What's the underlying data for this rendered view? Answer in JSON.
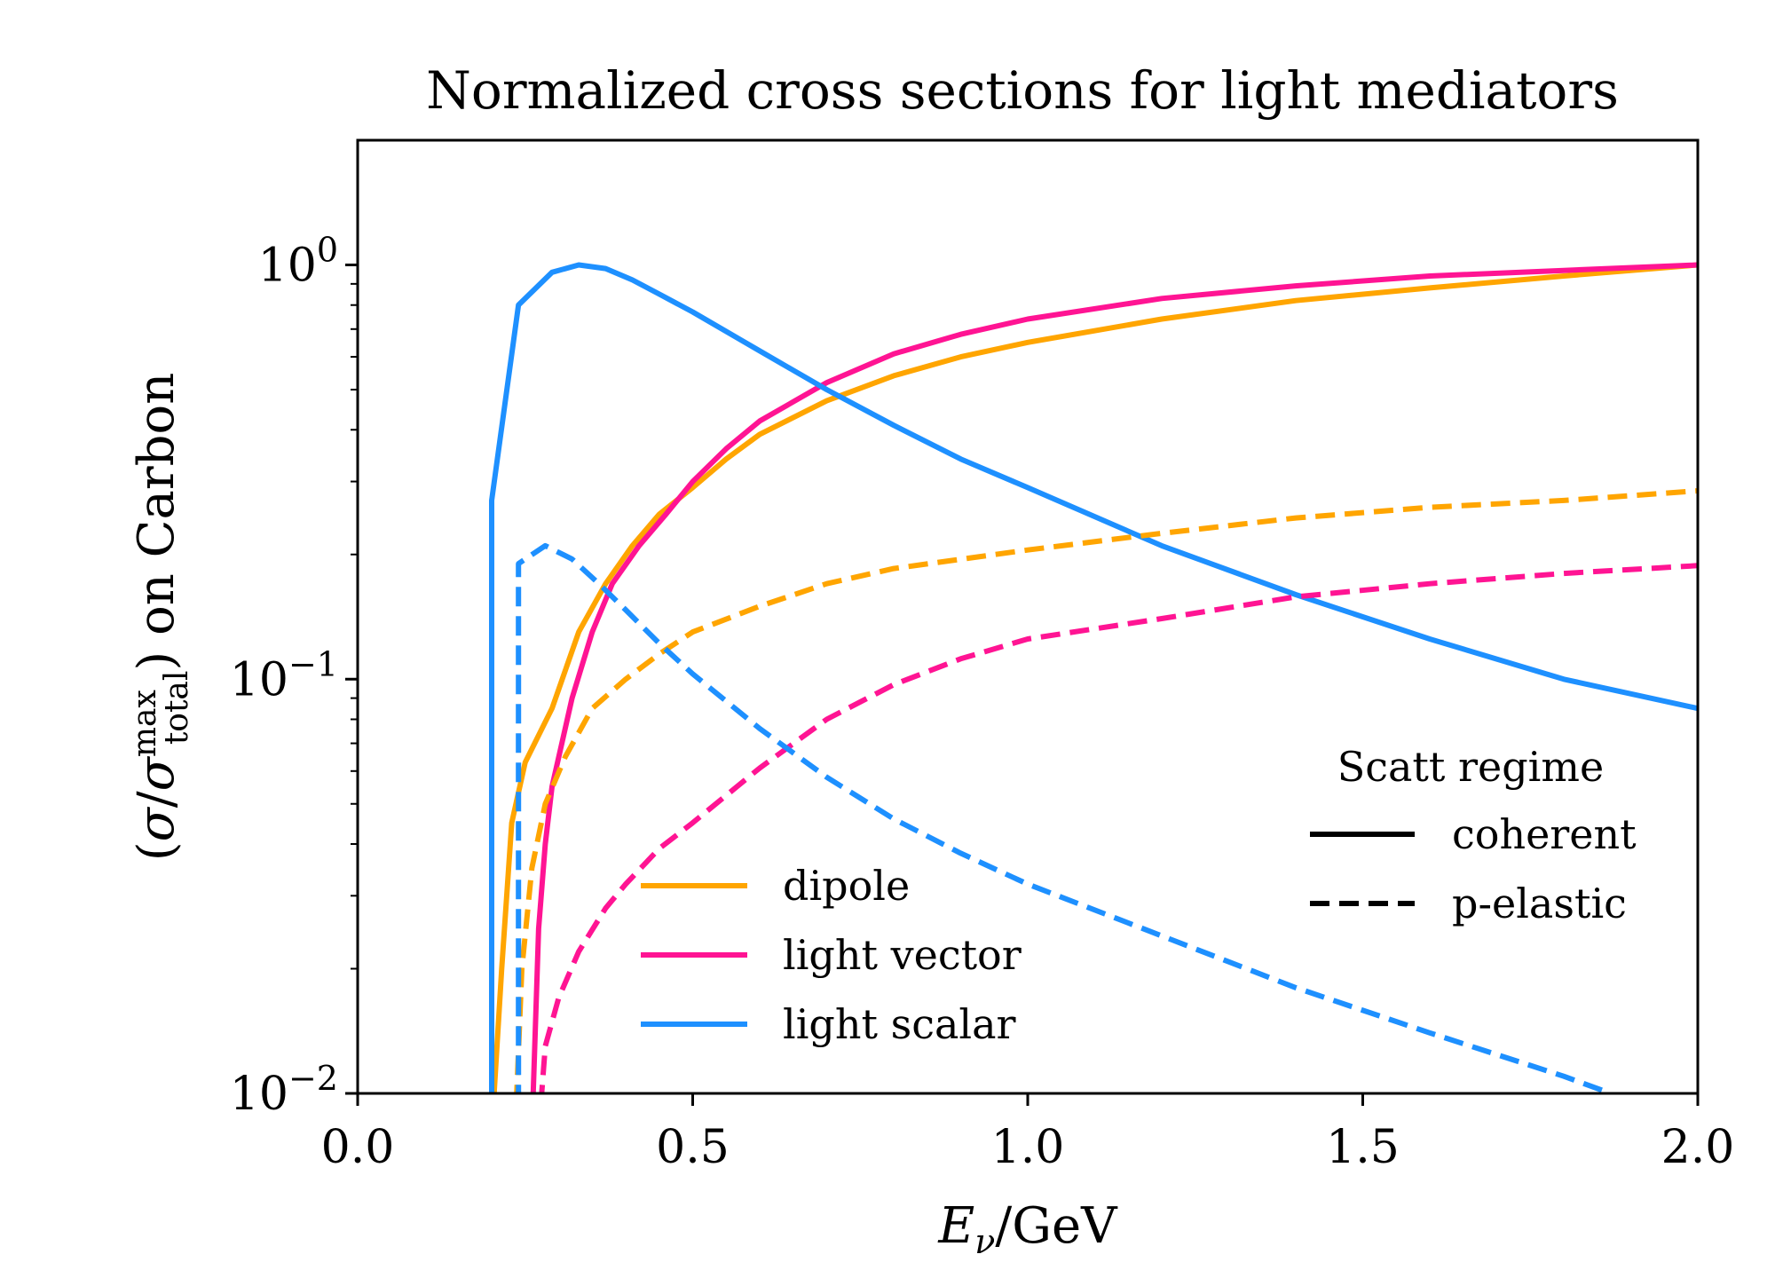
{
  "chart_data": {
    "type": "line",
    "title": "Normalized cross sections for light mediators",
    "xlabel": "E_ν/GeV",
    "ylabel": "(σ/σ_total^max) on Carbon",
    "xlim": [
      0.0,
      2.0
    ],
    "ylim": [
      0.01,
      2.0
    ],
    "yscale": "log",
    "grid": false,
    "xticks": [
      {
        "value": 0.0,
        "label": "0.0"
      },
      {
        "value": 0.5,
        "label": "0.5"
      },
      {
        "value": 1.0,
        "label": "1.0"
      },
      {
        "value": 1.5,
        "label": "1.5"
      },
      {
        "value": 2.0,
        "label": "2.0"
      }
    ],
    "yticks": [
      {
        "value": 0.01,
        "base": "10",
        "exp": "−2"
      },
      {
        "value": 0.1,
        "base": "10",
        "exp": "−1"
      },
      {
        "value": 1,
        "base": "10",
        "exp": "0"
      }
    ],
    "model_legend": {
      "placement": "lower-center",
      "entries": [
        {
          "label": "dipole",
          "color": "#ffa500"
        },
        {
          "label": "light vector",
          "color": "#ff1493"
        },
        {
          "label": "light scalar",
          "color": "#1e90ff"
        }
      ]
    },
    "regime_legend": {
      "placement": "lower-right",
      "title": "Scatt regime",
      "entries": [
        {
          "label": "coherent",
          "dash": "solid"
        },
        {
          "label": "p-elastic",
          "dash": "dashed"
        }
      ]
    },
    "series": [
      {
        "model": "dipole",
        "regime": "coherent",
        "color": "#ffa500",
        "dash": "solid",
        "x": [
          0.2,
          0.215,
          0.23,
          0.25,
          0.29,
          0.33,
          0.37,
          0.41,
          0.45,
          0.5,
          0.55,
          0.6,
          0.7,
          0.8,
          0.9,
          1.0,
          1.2,
          1.4,
          1.6,
          1.8,
          2.0
        ],
        "y": [
          0.008,
          0.02,
          0.045,
          0.063,
          0.085,
          0.13,
          0.17,
          0.21,
          0.25,
          0.29,
          0.34,
          0.39,
          0.47,
          0.54,
          0.6,
          0.65,
          0.74,
          0.82,
          0.88,
          0.94,
          1.0
        ]
      },
      {
        "model": "light vector",
        "regime": "coherent",
        "color": "#ff1493",
        "dash": "solid",
        "x": [
          0.26,
          0.27,
          0.28,
          0.29,
          0.32,
          0.35,
          0.38,
          0.42,
          0.46,
          0.5,
          0.55,
          0.6,
          0.7,
          0.8,
          0.9,
          1.0,
          1.2,
          1.4,
          1.6,
          1.8,
          2.0
        ],
        "y": [
          0.008,
          0.025,
          0.04,
          0.055,
          0.09,
          0.13,
          0.17,
          0.21,
          0.25,
          0.3,
          0.36,
          0.42,
          0.52,
          0.61,
          0.68,
          0.74,
          0.83,
          0.89,
          0.94,
          0.97,
          1.0
        ]
      },
      {
        "model": "light scalar",
        "regime": "coherent",
        "color": "#1e90ff",
        "dash": "solid",
        "x": [
          0.2,
          0.2,
          0.24,
          0.29,
          0.33,
          0.37,
          0.41,
          0.45,
          0.5,
          0.6,
          0.7,
          0.8,
          0.9,
          1.0,
          1.2,
          1.4,
          1.6,
          1.8,
          2.0
        ],
        "y": [
          0.008,
          0.27,
          0.8,
          0.96,
          1.0,
          0.98,
          0.92,
          0.85,
          0.77,
          0.62,
          0.5,
          0.41,
          0.34,
          0.29,
          0.21,
          0.16,
          0.125,
          0.1,
          0.085
        ]
      },
      {
        "model": "dipole",
        "regime": "p-elastic",
        "color": "#ffa500",
        "dash": "dashed",
        "x": [
          0.235,
          0.245,
          0.26,
          0.28,
          0.31,
          0.35,
          0.4,
          0.45,
          0.5,
          0.6,
          0.7,
          0.8,
          1.0,
          1.2,
          1.4,
          1.6,
          1.8,
          2.0
        ],
        "y": [
          0.008,
          0.02,
          0.035,
          0.05,
          0.065,
          0.085,
          0.1,
          0.115,
          0.13,
          0.15,
          0.17,
          0.185,
          0.205,
          0.225,
          0.245,
          0.26,
          0.27,
          0.285
        ]
      },
      {
        "model": "light vector",
        "regime": "p-elastic",
        "color": "#ff1493",
        "dash": "dashed",
        "x": [
          0.27,
          0.28,
          0.3,
          0.33,
          0.37,
          0.4,
          0.45,
          0.5,
          0.6,
          0.7,
          0.8,
          0.9,
          1.0,
          1.2,
          1.4,
          1.6,
          1.8,
          2.0
        ],
        "y": [
          0.008,
          0.013,
          0.017,
          0.022,
          0.028,
          0.032,
          0.039,
          0.045,
          0.061,
          0.08,
          0.097,
          0.112,
          0.125,
          0.14,
          0.158,
          0.17,
          0.18,
          0.188
        ]
      },
      {
        "model": "light scalar",
        "regime": "p-elastic",
        "color": "#1e90ff",
        "dash": "dashed",
        "x": [
          0.24,
          0.24,
          0.28,
          0.32,
          0.36,
          0.4,
          0.45,
          0.5,
          0.6,
          0.7,
          0.8,
          0.9,
          1.0,
          1.2,
          1.4,
          1.6,
          1.8,
          1.87
        ],
        "y": [
          0.008,
          0.19,
          0.21,
          0.195,
          0.17,
          0.147,
          0.122,
          0.103,
          0.076,
          0.058,
          0.046,
          0.038,
          0.032,
          0.024,
          0.018,
          0.014,
          0.011,
          0.01
        ]
      }
    ]
  }
}
